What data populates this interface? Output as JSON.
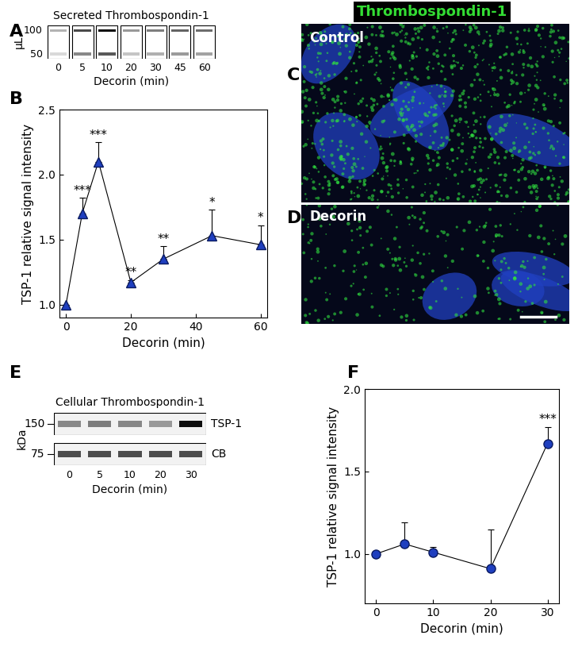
{
  "chart_data": [
    {
      "panel": "B",
      "type": "line",
      "x": [
        0,
        5,
        10,
        20,
        30,
        45,
        60
      ],
      "values": [
        1.0,
        1.7,
        2.1,
        1.17,
        1.35,
        1.53,
        1.46
      ],
      "errors": [
        0,
        0.12,
        0.15,
        0.02,
        0.1,
        0.2,
        0.15
      ],
      "significance": [
        null,
        "***",
        "***",
        "**",
        "**",
        "*",
        "*"
      ],
      "x_label": "Decorin (min)",
      "y_label": "TSP-1 relative signal intensity",
      "xlim": [
        -2,
        62
      ],
      "ylim": [
        0.9,
        2.5
      ],
      "xticks": [
        0,
        20,
        40,
        60
      ],
      "yticks": [
        {
          "value": 1,
          "label": "1.0"
        },
        1.5,
        {
          "value": 2,
          "label": "2.0"
        },
        2.5
      ],
      "color": "#1f3fbf",
      "marker": "triangle"
    },
    {
      "panel": "F",
      "type": "line",
      "x": [
        0,
        5,
        10,
        20,
        30
      ],
      "values": [
        1.0,
        1.06,
        1.01,
        0.91,
        1.67
      ],
      "errors": [
        0,
        0.13,
        0.03,
        0.24,
        0.1
      ],
      "significance": [
        null,
        null,
        null,
        null,
        "***"
      ],
      "x_label": "Decorin (min)",
      "y_label": "TSP-1 relative signal intensity",
      "xlim": [
        -2,
        32
      ],
      "ylim": [
        0.7,
        2.0
      ],
      "xticks": [
        0,
        10,
        20,
        30
      ],
      "yticks": [
        {
          "value": 1,
          "label": "1.0"
        },
        1.5,
        {
          "value": 2,
          "label": "2.0"
        }
      ],
      "color": "#1f3fbf",
      "marker": "circle"
    }
  ],
  "blots": [
    {
      "panel": "A",
      "title": "Secreted Thrombospondin-1",
      "y_label": "µL",
      "y_ticks": [
        100,
        50
      ],
      "lanes": [
        0,
        5,
        10,
        20,
        30,
        45,
        60
      ],
      "x_label": "Decorin (min)"
    },
    {
      "panel": "E",
      "title": "Cellular Thrombospondin-1",
      "y_label": "kDa",
      "y_ticks": [
        150,
        75
      ],
      "rows": [
        "TSP-1",
        "CB"
      ],
      "lanes": [
        0,
        5,
        10,
        20,
        30
      ],
      "x_label": "Decorin (min)"
    }
  ],
  "images": {
    "title": "Thrombospondin-1",
    "panels": [
      {
        "panel": "C",
        "label": "Control"
      },
      {
        "panel": "D",
        "label": "Decorin"
      }
    ]
  }
}
